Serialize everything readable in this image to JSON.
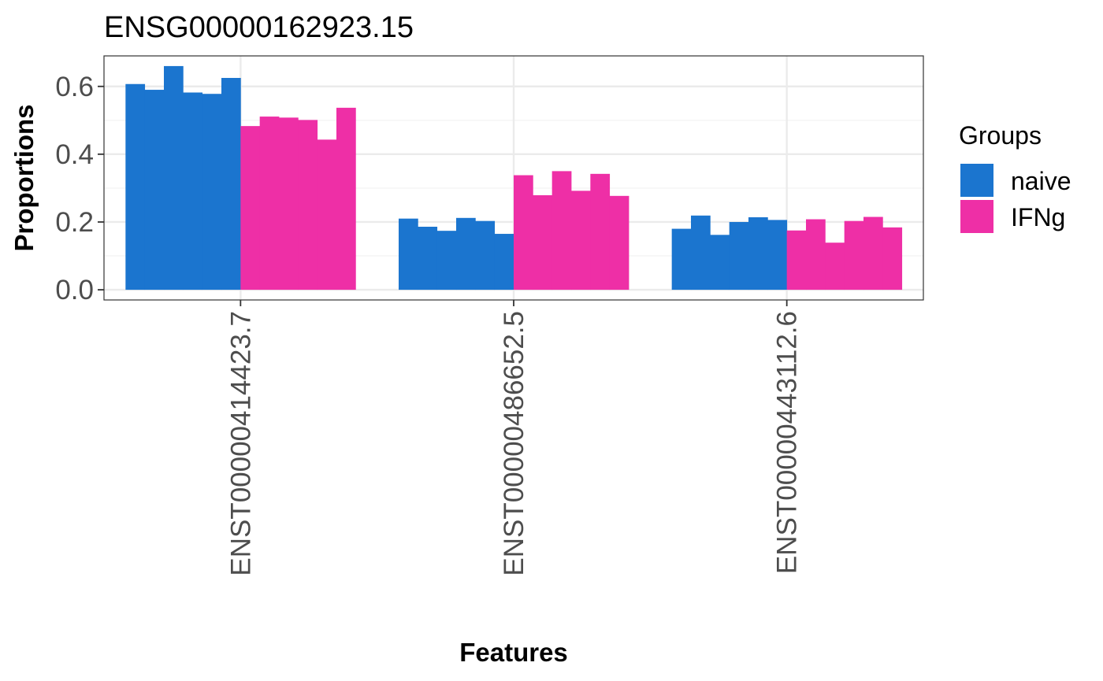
{
  "chart_data": {
    "type": "bar",
    "title": "ENSG00000162923.15",
    "xlabel": "Features",
    "ylabel": "Proportions",
    "ylim": [
      -0.03,
      0.69
    ],
    "yticks": [
      "0.0",
      "0.2",
      "0.4",
      "0.6"
    ],
    "ytick_values": [
      0.0,
      0.2,
      0.4,
      0.6
    ],
    "grid": true,
    "categories": [
      "ENST00000414423.7",
      "ENST00000486652.5",
      "ENST00000443112.6"
    ],
    "series": [
      {
        "name": "naive",
        "color": "#1b75cf",
        "values": [
          [
            0.607,
            0.59,
            0.66,
            0.582,
            0.578,
            0.625
          ],
          [
            0.21,
            0.186,
            0.174,
            0.212,
            0.203,
            0.165
          ],
          [
            0.18,
            0.219,
            0.162,
            0.2,
            0.214,
            0.206
          ]
        ]
      },
      {
        "name": "IFNg",
        "color": "#ee2fa6",
        "values": [
          [
            0.483,
            0.511,
            0.508,
            0.501,
            0.443,
            0.537
          ],
          [
            0.338,
            0.279,
            0.35,
            0.292,
            0.342,
            0.277
          ],
          [
            0.175,
            0.208,
            0.139,
            0.203,
            0.215,
            0.184
          ]
        ]
      }
    ],
    "legend": {
      "title": "Groups",
      "position": "right"
    }
  }
}
